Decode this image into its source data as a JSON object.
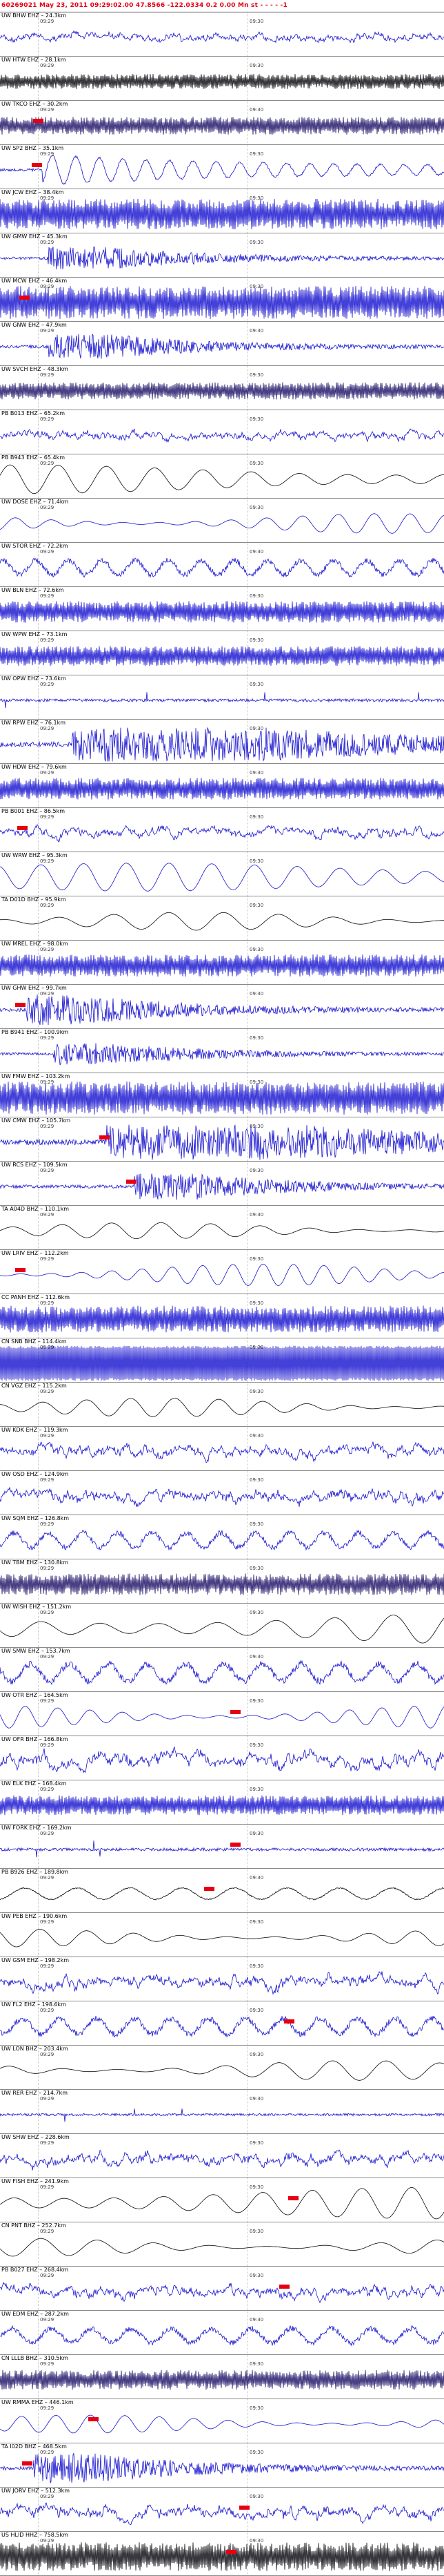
{
  "header": {
    "info": "60269021 May 23, 2011 09:29:02.00    47.8566 -122.0334   0.2 0.00 Mn st - - - - -1"
  },
  "time_ticks": [
    "09:29",
    "09:30"
  ],
  "tick_positions": [
    0.085,
    0.557
  ],
  "colors": {
    "blue": "#1511cf",
    "black": "#06060c",
    "navy": "#1c1066",
    "marker": "#e60012"
  },
  "rows": [
    {
      "label": "UW BHW EHZ – 24.3km",
      "color": "blue",
      "style": "noise",
      "amp": 0.3,
      "seed": 101,
      "markers": []
    },
    {
      "label": "UW HTW EHZ – 28.1km",
      "color": "black",
      "style": "densenoise",
      "amp": 0.42,
      "seed": 102,
      "markers": []
    },
    {
      "label": "UW TKCO EHZ – 30.2km",
      "color": "navy",
      "style": "densenoise",
      "amp": 0.5,
      "seed": 103,
      "markers": [
        0.085
      ]
    },
    {
      "label": "UW SP2 BHZ – 35.1km",
      "color": "blue",
      "style": "burstsine",
      "amp": 0.85,
      "seed": 104,
      "burst": 0.095,
      "markers": [
        0.082
      ]
    },
    {
      "label": "UW JCW EHZ – 38.4km",
      "color": "blue",
      "style": "densenoise",
      "amp": 0.85,
      "seed": 105,
      "markers": []
    },
    {
      "label": "UW GMW EHZ – 45.3km",
      "color": "blue",
      "style": "burstnoise",
      "amp": 0.65,
      "seed": 106,
      "burst": 0.105,
      "markers": []
    },
    {
      "label": "UW MCW EHZ – 46.4km",
      "color": "blue",
      "style": "densenoise",
      "amp": 0.92,
      "seed": 107,
      "markers": [
        0.055
      ]
    },
    {
      "label": "UW GNW EHZ – 47.9km",
      "color": "blue",
      "style": "burstnoise",
      "amp": 0.7,
      "seed": 108,
      "burst": 0.11,
      "markers": []
    },
    {
      "label": "UW SVCH EHZ – 48.3km",
      "color": "navy",
      "style": "densenoise",
      "amp": 0.48,
      "seed": 109,
      "markers": []
    },
    {
      "label": "PB B013 EHZ – 65.2km",
      "color": "blue",
      "style": "noise",
      "amp": 0.32,
      "seed": 110,
      "markers": []
    },
    {
      "label": "PB B943 EHZ – 65.4km",
      "color": "black",
      "style": "bigsine",
      "amp": 0.8,
      "seed": 111,
      "period": 70,
      "markers": []
    },
    {
      "label": "UW DOSE EHZ – 71.4km",
      "color": "blue",
      "style": "sine",
      "amp": 0.55,
      "seed": 112,
      "period": 52,
      "markers": []
    },
    {
      "label": "UW STOR EHZ – 72.2km",
      "color": "blue",
      "style": "sinenoise",
      "amp": 0.5,
      "seed": 113,
      "period": 48,
      "markers": []
    },
    {
      "label": "UW BLN EHZ – 72.6km",
      "color": "blue",
      "style": "densenoise",
      "amp": 0.6,
      "seed": 114,
      "markers": []
    },
    {
      "label": "UW WPW EHZ – 73.1km",
      "color": "blue",
      "style": "densenoise",
      "amp": 0.55,
      "seed": 115,
      "markers": []
    },
    {
      "label": "UW OPW EHZ – 73.6km",
      "color": "blue",
      "style": "spiky",
      "amp": 0.55,
      "seed": 116,
      "markers": []
    },
    {
      "label": "UW RPW EHZ – 76.1km",
      "color": "blue",
      "style": "heavyburst",
      "amp": 0.95,
      "seed": 117,
      "burst": 0.16,
      "markers": []
    },
    {
      "label": "UW HDW EHZ – 79.6km",
      "color": "blue",
      "style": "densenoise",
      "amp": 0.6,
      "seed": 118,
      "markers": []
    },
    {
      "label": "PB B001 EHZ – 86.5km",
      "color": "blue",
      "style": "noise",
      "amp": 0.35,
      "seed": 119,
      "markers": [
        0.05
      ]
    },
    {
      "label": "UW WRW EHZ – 95.3km",
      "color": "blue",
      "style": "bigsine",
      "amp": 0.78,
      "seed": 120,
      "period": 62,
      "markers": []
    },
    {
      "label": "TA D01D BHZ – 95.9km",
      "color": "black",
      "style": "sine",
      "amp": 0.5,
      "seed": 121,
      "period": 80,
      "markers": []
    },
    {
      "label": "UW MREL EHZ – 98.0km",
      "color": "blue",
      "style": "densenoise",
      "amp": 0.62,
      "seed": 122,
      "markers": []
    },
    {
      "label": "UW GHW EHZ – 99.7km",
      "color": "blue",
      "style": "burstnoise",
      "amp": 0.85,
      "seed": 123,
      "burst": 0.06,
      "markers": [
        0.045
      ]
    },
    {
      "label": "PB B941 EHZ – 100.9km",
      "color": "blue",
      "style": "burstnoise",
      "amp": 0.6,
      "seed": 124,
      "burst": 0.12,
      "markers": []
    },
    {
      "label": "UW FMW EHZ – 103.2km",
      "color": "blue",
      "style": "densenoise",
      "amp": 0.92,
      "seed": 125,
      "markers": []
    },
    {
      "label": "UW CMW EHZ – 105.7km",
      "color": "blue",
      "style": "heavyburst",
      "amp": 0.98,
      "seed": 126,
      "burst": 0.24,
      "markers": [
        0.235
      ]
    },
    {
      "label": "UW RCS EHZ – 109.5km",
      "color": "blue",
      "style": "burstnoise",
      "amp": 0.75,
      "seed": 127,
      "burst": 0.3,
      "markers": [
        0.295
      ]
    },
    {
      "label": "TA A04D BHZ – 110.1km",
      "color": "black",
      "style": "sine",
      "amp": 0.45,
      "seed": 128,
      "period": 72,
      "markers": []
    },
    {
      "label": "UW LRIV EHZ – 112.2km",
      "color": "blue",
      "style": "sine",
      "amp": 0.6,
      "seed": 129,
      "period": 44,
      "markers": [
        0.045
      ]
    },
    {
      "label": "CC PANH EHZ – 112.6km",
      "color": "blue",
      "style": "densenoise",
      "amp": 0.75,
      "seed": 130,
      "markers": []
    },
    {
      "label": "CN SNB BHZ – 114.4km",
      "color": "blue",
      "style": "flat",
      "amp": 0.98,
      "seed": 131,
      "markers": []
    },
    {
      "label": "CN VGZ EHZ – 115.2km",
      "color": "black",
      "style": "sine",
      "amp": 0.52,
      "seed": 132,
      "period": 64,
      "markers": []
    },
    {
      "label": "UW KDK EHZ – 119.3km",
      "color": "blue",
      "style": "noise",
      "amp": 0.42,
      "seed": 133,
      "markers": []
    },
    {
      "label": "UW OSD EHZ – 124.9km",
      "color": "blue",
      "style": "noise",
      "amp": 0.45,
      "seed": 134,
      "markers": []
    },
    {
      "label": "UW SQM EHZ – 126.8km",
      "color": "blue",
      "style": "sinenoise",
      "amp": 0.5,
      "seed": 135,
      "period": 50,
      "markers": []
    },
    {
      "label": "UW TBM EHZ – 130.8km",
      "color": "navy",
      "style": "densenoise",
      "amp": 0.6,
      "seed": 136,
      "markers": []
    },
    {
      "label": "UW WISH EHZ – 151.2km",
      "color": "black",
      "style": "bigsine",
      "amp": 0.92,
      "seed": 137,
      "period": 85,
      "markers": []
    },
    {
      "label": "UW SMW EHZ – 153.7km",
      "color": "blue",
      "style": "sinenoise",
      "amp": 0.6,
      "seed": 138,
      "period": 56,
      "markers": []
    },
    {
      "label": "UW OTR EHZ – 164.5km",
      "color": "blue",
      "style": "sine",
      "amp": 0.65,
      "seed": 139,
      "period": 47,
      "markers": [
        0.53
      ]
    },
    {
      "label": "UW OFR BHZ – 166.8km",
      "color": "blue",
      "style": "noise",
      "amp": 0.5,
      "seed": 140,
      "markers": []
    },
    {
      "label": "UW ELK EHZ – 168.4km",
      "color": "blue",
      "style": "densenoise",
      "amp": 0.55,
      "seed": 141,
      "markers": []
    },
    {
      "label": "UW FORK EHZ – 169.2km",
      "color": "blue",
      "style": "spiky",
      "amp": 0.55,
      "seed": 142,
      "markers": [
        0.53
      ]
    },
    {
      "label": "PB B926 EHZ – 189.8km",
      "color": "black",
      "style": "sinespiky",
      "amp": 0.45,
      "seed": 143,
      "period": 76,
      "markers": [
        0.47
      ]
    },
    {
      "label": "UW PEB EHZ – 190.6km",
      "color": "black",
      "style": "sine",
      "amp": 0.5,
      "seed": 144,
      "period": 68,
      "markers": []
    },
    {
      "label": "UW GSM EHZ – 198.2km",
      "color": "blue",
      "style": "noise",
      "amp": 0.45,
      "seed": 145,
      "markers": []
    },
    {
      "label": "UW FL2 EHZ – 198.6km",
      "color": "blue",
      "style": "sinenoise",
      "amp": 0.55,
      "seed": 146,
      "period": 54,
      "markers": [
        0.65
      ]
    },
    {
      "label": "UW LON BHZ – 203.4km",
      "color": "black",
      "style": "sine",
      "amp": 0.55,
      "seed": 147,
      "period": 78,
      "markers": []
    },
    {
      "label": "UW RER EHZ – 214.7km",
      "color": "blue",
      "style": "spiky",
      "amp": 0.45,
      "seed": 148,
      "markers": []
    },
    {
      "label": "UW SHW EHZ – 228.6km",
      "color": "blue",
      "style": "noise",
      "amp": 0.42,
      "seed": 149,
      "markers": []
    },
    {
      "label": "UW FISH EHZ – 241.9km",
      "color": "black",
      "style": "bigsine",
      "amp": 0.88,
      "seed": 150,
      "period": 72,
      "markers": [
        0.66
      ]
    },
    {
      "label": "CN PNT BHZ – 252.7km",
      "color": "black",
      "style": "sine",
      "amp": 0.5,
      "seed": 151,
      "period": 82,
      "markers": []
    },
    {
      "label": "PB B027 EHZ – 268.4km",
      "color": "blue",
      "style": "noise",
      "amp": 0.42,
      "seed": 152,
      "markers": [
        0.64
      ]
    },
    {
      "label": "UW EDM EHZ – 287.2km",
      "color": "blue",
      "style": "sinenoise",
      "amp": 0.5,
      "seed": 153,
      "period": 58,
      "markers": []
    },
    {
      "label": "CN LLLB BHZ – 310.5km",
      "color": "navy",
      "style": "densenoise",
      "amp": 0.55,
      "seed": 154,
      "markers": []
    },
    {
      "label": "UW RMMA EHZ – 446.1km",
      "color": "blue",
      "style": "sine",
      "amp": 0.5,
      "seed": 155,
      "period": 50,
      "markers": [
        0.21
      ]
    },
    {
      "label": "TA I02D BHZ – 468.5km",
      "color": "blue",
      "style": "burstnoise",
      "amp": 0.85,
      "seed": 156,
      "burst": 0.075,
      "markers": [
        0.06
      ]
    },
    {
      "label": "UW JORV EHZ – 512.3km",
      "color": "blue",
      "style": "noise",
      "amp": 0.45,
      "seed": 157,
      "markers": [
        0.55
      ]
    },
    {
      "label": "US HLID HHZ – 758.5km",
      "color": "black",
      "style": "densenoise",
      "amp": 0.8,
      "seed": 158,
      "markers": [
        0.52
      ]
    }
  ]
}
